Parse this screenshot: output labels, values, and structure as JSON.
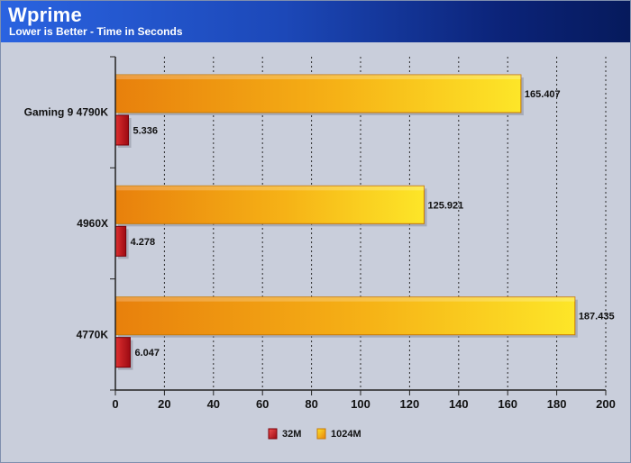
{
  "header": {
    "title": "Wprime",
    "subtitle": "Lower is Better - Time in Seconds"
  },
  "chart_data": {
    "type": "bar",
    "orientation": "horizontal",
    "title": "Wprime",
    "subtitle": "Lower is Better - Time in Seconds",
    "categories": [
      "Gaming 9 4790K",
      "4960X",
      "4770K"
    ],
    "series": [
      {
        "name": "32M",
        "values": [
          5.336,
          4.278,
          6.047
        ],
        "color": "#c8141e"
      },
      {
        "name": "1024M",
        "values": [
          165.407,
          125.921,
          187.435
        ],
        "color": "#f5b800"
      }
    ],
    "data_labels": {
      "32M": [
        "5.336",
        "4.278",
        "6.047"
      ],
      "1024M": [
        "165.407",
        "125.921",
        "187.435"
      ]
    },
    "xlim": [
      0,
      200
    ],
    "xticks": [
      0,
      20,
      40,
      60,
      80,
      100,
      120,
      140,
      160,
      180,
      200
    ],
    "grid": "vertical-dotted",
    "legend": "bottom-center",
    "background_color": "#c9cedb"
  }
}
